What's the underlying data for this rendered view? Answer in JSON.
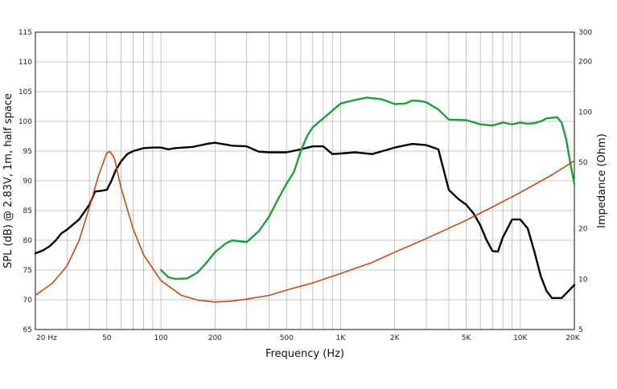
{
  "chart_data": {
    "type": "line",
    "xlabel": "Frequency (Hz)",
    "ylabel": "SPL (dB) @ 2.83V, 1m, half space",
    "y2label": "Impedance (Ohm)",
    "x_scale": "log",
    "xlim": [
      20,
      20000
    ],
    "ylim": [
      65,
      115
    ],
    "y2_scale": "log",
    "y2lim": [
      5,
      300
    ],
    "grid": true,
    "x_ticks": [
      {
        "value": 20,
        "label": "20 Hz"
      },
      {
        "value": 50,
        "label": "50"
      },
      {
        "value": 100,
        "label": "100"
      },
      {
        "value": 200,
        "label": "200"
      },
      {
        "value": 500,
        "label": "500"
      },
      {
        "value": 1000,
        "label": "1K"
      },
      {
        "value": 2000,
        "label": "2K"
      },
      {
        "value": 5000,
        "label": "5K"
      },
      {
        "value": 10000,
        "label": "10K"
      },
      {
        "value": 20000,
        "label": "20K"
      }
    ],
    "y_ticks": [
      {
        "value": 65,
        "label": "65"
      },
      {
        "value": 70,
        "label": "70"
      },
      {
        "value": 75,
        "label": "75"
      },
      {
        "value": 80,
        "label": "80"
      },
      {
        "value": 85,
        "label": "85"
      },
      {
        "value": 90,
        "label": "90"
      },
      {
        "value": 95,
        "label": "95"
      },
      {
        "value": 100,
        "label": "100"
      },
      {
        "value": 105,
        "label": "105"
      },
      {
        "value": 110,
        "label": "110"
      },
      {
        "value": 115,
        "label": "115"
      }
    ],
    "y2_ticks": [
      {
        "value": 5,
        "label": "5"
      },
      {
        "value": 10,
        "label": "10"
      },
      {
        "value": 20,
        "label": "20"
      },
      {
        "value": 50,
        "label": "50"
      },
      {
        "value": 100,
        "label": "100"
      },
      {
        "value": 200,
        "label": "200"
      },
      {
        "value": 300,
        "label": "300"
      }
    ],
    "series": [
      {
        "color": "#000000",
        "axis": "left",
        "x": [
          20,
          22,
          24,
          26,
          28,
          30,
          35,
          40,
          43,
          46,
          50,
          53,
          56,
          60,
          65,
          70,
          80,
          90,
          100,
          110,
          120,
          150,
          180,
          200,
          250,
          300,
          350,
          400,
          500,
          600,
          700,
          800,
          900,
          1000,
          1200,
          1500,
          2000,
          2500,
          3000,
          3500,
          4000,
          4500,
          5000,
          5500,
          6000,
          6500,
          7000,
          7500,
          8000,
          9000,
          10000,
          11000,
          12000,
          13000,
          14000,
          15000,
          17000,
          20000
        ],
        "y": [
          77.8,
          78.3,
          79.0,
          80.0,
          81.2,
          81.8,
          83.5,
          86.0,
          88.2,
          88.3,
          88.5,
          90.0,
          91.8,
          93.3,
          94.5,
          95.0,
          95.5,
          95.6,
          95.6,
          95.3,
          95.5,
          95.7,
          96.2,
          96.4,
          95.9,
          95.8,
          94.9,
          94.8,
          94.8,
          95.3,
          95.8,
          95.8,
          94.5,
          94.6,
          94.8,
          94.5,
          95.6,
          96.2,
          96.0,
          95.3,
          88.5,
          87.0,
          86.0,
          84.5,
          82.5,
          80.0,
          78.2,
          78.1,
          80.5,
          83.5,
          83.5,
          82.0,
          78.0,
          74.0,
          71.5,
          70.3,
          70.3,
          72.5
        ]
      },
      {
        "color": "#1e9e3a",
        "axis": "left",
        "x": [
          100,
          110,
          120,
          140,
          160,
          180,
          200,
          230,
          250,
          280,
          300,
          350,
          400,
          450,
          500,
          550,
          600,
          650,
          700,
          800,
          900,
          1000,
          1200,
          1400,
          1700,
          2000,
          2300,
          2500,
          2800,
          3000,
          3500,
          4000,
          5000,
          6000,
          7000,
          8000,
          9000,
          10000,
          11000,
          12000,
          13000,
          14000,
          15000,
          16000,
          17000,
          18000,
          19000,
          20000
        ],
        "y": [
          75.0,
          73.8,
          73.5,
          73.6,
          74.6,
          76.3,
          78.0,
          79.5,
          80.0,
          79.8,
          79.7,
          81.5,
          84.0,
          87.0,
          89.5,
          91.5,
          95.0,
          97.5,
          99.0,
          100.5,
          101.8,
          103.0,
          103.6,
          104.0,
          103.7,
          102.9,
          103.0,
          103.5,
          103.4,
          103.2,
          102.0,
          100.3,
          100.2,
          99.5,
          99.3,
          99.8,
          99.5,
          99.8,
          99.6,
          99.7,
          100.0,
          100.5,
          100.6,
          100.7,
          99.8,
          97.0,
          93.0,
          89.5
        ]
      },
      {
        "color": "#c44a14",
        "axis": "right",
        "x": [
          20,
          25,
          30,
          35,
          40,
          45,
          50,
          52,
          55,
          60,
          70,
          80,
          100,
          130,
          160,
          200,
          250,
          300,
          400,
          500,
          700,
          1000,
          1500,
          2000,
          3000,
          5000,
          7000,
          10000,
          15000,
          20000
        ],
        "y2": [
          8.0,
          9.5,
          12.0,
          17.0,
          27.0,
          42.0,
          57.0,
          58.0,
          53.0,
          35.0,
          20.0,
          14.0,
          9.8,
          8.0,
          7.5,
          7.3,
          7.4,
          7.6,
          8.0,
          8.6,
          9.5,
          10.8,
          12.6,
          14.5,
          17.5,
          22.5,
          27.0,
          33.0,
          42.0,
          51.0
        ]
      }
    ]
  }
}
